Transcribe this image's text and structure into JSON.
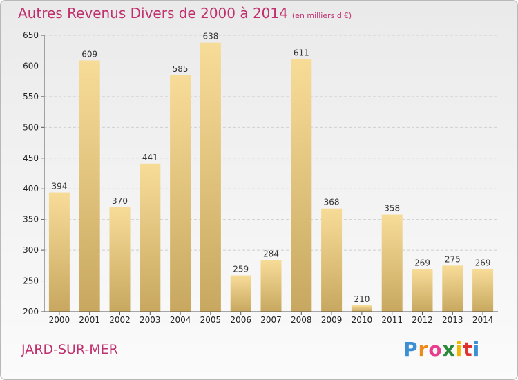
{
  "title": "Autres Revenus Divers de 2000 à 2014",
  "unit": "(en milliers d'€)",
  "town": "JARD-SUR-MER",
  "logo": [
    "P",
    "r",
    "o",
    "x",
    "i",
    "t",
    "i"
  ],
  "logo_colors": [
    "#3b8fd4",
    "#f08a1c",
    "#e83e8c",
    "#2a8a3a",
    "#f2b700",
    "#e0312f",
    "#3b8fd4"
  ],
  "colors": {
    "accent": "#c0306e",
    "bar_light": "#f7dc98",
    "bar_dark": "#c8a860",
    "grid": "#cfcfcf"
  },
  "chart_data": {
    "type": "bar",
    "categories": [
      "2000",
      "2001",
      "2002",
      "2003",
      "2004",
      "2005",
      "2006",
      "2007",
      "2008",
      "2009",
      "2010",
      "2011",
      "2012",
      "2013",
      "2014"
    ],
    "values": [
      394,
      609,
      370,
      441,
      585,
      638,
      259,
      284,
      611,
      368,
      210,
      358,
      269,
      275,
      269
    ],
    "ylim": [
      200,
      650
    ],
    "yticks": [
      200,
      250,
      300,
      350,
      400,
      450,
      500,
      550,
      600,
      650
    ],
    "grid": true
  }
}
